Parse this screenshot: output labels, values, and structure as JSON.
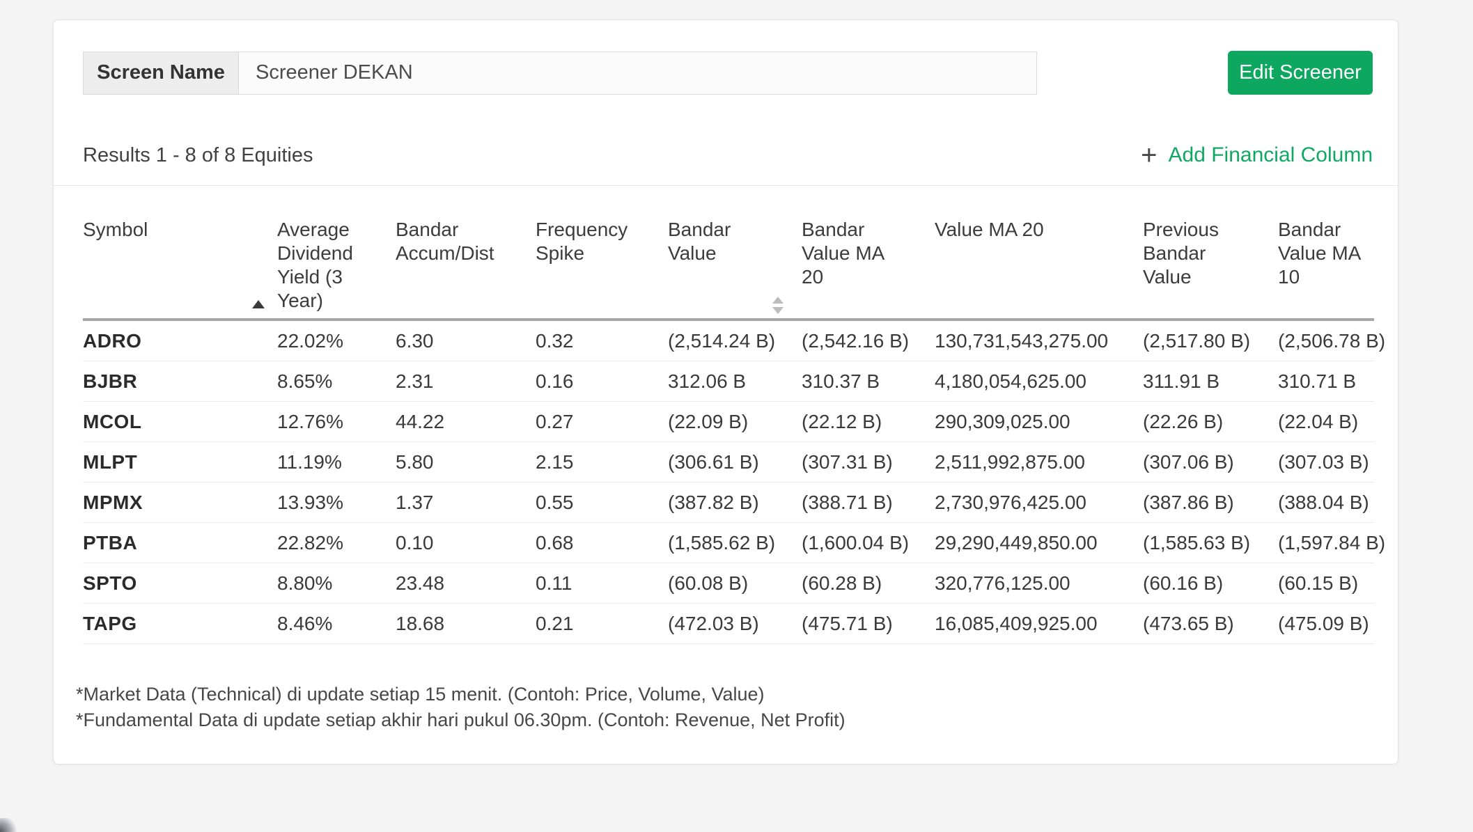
{
  "screen_name": {
    "label": "Screen Name",
    "value": "Screener DEKAN",
    "edit_button": "Edit Screener"
  },
  "results": {
    "text": "Results 1 - 8 of 8 Equities",
    "plus_icon": "+",
    "add_column_label": "Add Financial Column"
  },
  "table": {
    "columns": [
      {
        "label": "Symbol",
        "sort": "none"
      },
      {
        "label": "Average Dividend Yield (3 Year)",
        "sort": "asc"
      },
      {
        "label": "Bandar Accum/Dist",
        "sort": "none"
      },
      {
        "label": "Frequency Spike",
        "sort": "none"
      },
      {
        "label": "Bandar Value",
        "sort": "updown"
      },
      {
        "label": "Bandar Value MA 20",
        "sort": "none"
      },
      {
        "label": "Value MA 20",
        "sort": "none"
      },
      {
        "label": "Previous Bandar Value",
        "sort": "none"
      },
      {
        "label": "Bandar Value MA 10",
        "sort": "none"
      }
    ],
    "rows": [
      {
        "symbol": "ADRO",
        "values": [
          "22.02%",
          "6.30",
          "0.32",
          "(2,514.24 B)",
          "(2,542.16 B)",
          "130,731,543,275.00",
          "(2,517.80 B)",
          "(2,506.78 B)"
        ]
      },
      {
        "symbol": "BJBR",
        "values": [
          "8.65%",
          "2.31",
          "0.16",
          "312.06 B",
          "310.37 B",
          "4,180,054,625.00",
          "311.91 B",
          "310.71 B"
        ]
      },
      {
        "symbol": "MCOL",
        "values": [
          "12.76%",
          "44.22",
          "0.27",
          "(22.09 B)",
          "(22.12 B)",
          "290,309,025.00",
          "(22.26 B)",
          "(22.04 B)"
        ]
      },
      {
        "symbol": "MLPT",
        "values": [
          "11.19%",
          "5.80",
          "2.15",
          "(306.61 B)",
          "(307.31 B)",
          "2,511,992,875.00",
          "(307.06 B)",
          "(307.03 B)"
        ]
      },
      {
        "symbol": "MPMX",
        "values": [
          "13.93%",
          "1.37",
          "0.55",
          "(387.82 B)",
          "(388.71 B)",
          "2,730,976,425.00",
          "(387.86 B)",
          "(388.04 B)"
        ]
      },
      {
        "symbol": "PTBA",
        "values": [
          "22.82%",
          "0.10",
          "0.68",
          "(1,585.62 B)",
          "(1,600.04 B)",
          "29,290,449,850.00",
          "(1,585.63 B)",
          "(1,597.84 B)"
        ]
      },
      {
        "symbol": "SPTO",
        "values": [
          "8.80%",
          "23.48",
          "0.11",
          "(60.08 B)",
          "(60.28 B)",
          "320,776,125.00",
          "(60.16 B)",
          "(60.15 B)"
        ]
      },
      {
        "symbol": "TAPG",
        "values": [
          "8.46%",
          "18.68",
          "0.21",
          "(472.03 B)",
          "(475.71 B)",
          "16,085,409,925.00",
          "(473.65 B)",
          "(475.09 B)"
        ]
      }
    ]
  },
  "footnotes": [
    "*Market Data (Technical) di update setiap 15 menit. (Contoh: Price, Volume, Value)",
    "*Fundamental Data di update setiap akhir hari pukul 06.30pm. (Contoh: Revenue, Net Profit)"
  ],
  "colors": {
    "accent_green": "#0ea760",
    "link_green": "#0fa863",
    "header_underline": "#a5a5a5"
  }
}
